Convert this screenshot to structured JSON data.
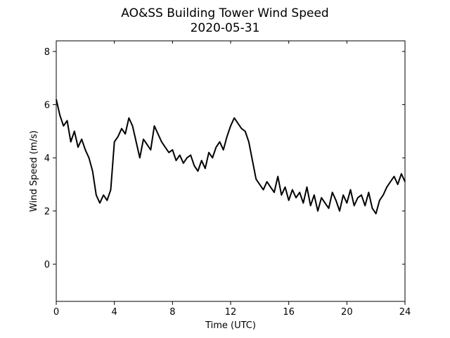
{
  "chart_data": {
    "type": "line",
    "title": "AO&SS Building Tower Wind Speed",
    "subtitle": "2020-05-31",
    "xlabel": "Time (UTC)",
    "ylabel": "Wind Speed (m/s)",
    "xlim": [
      0,
      24
    ],
    "ylim": [
      -1.4,
      8.4
    ],
    "xticks": [
      0,
      4,
      8,
      12,
      16,
      20,
      24
    ],
    "yticks": [
      0,
      2,
      4,
      6,
      8
    ],
    "grid": false,
    "legend": "none",
    "line_color": "#000000",
    "series": [
      {
        "x": [
          0,
          0.25,
          0.5,
          0.75,
          1.0,
          1.25,
          1.5,
          1.75,
          2.0,
          2.25,
          2.5,
          2.75,
          3.0,
          3.25,
          3.5,
          3.75,
          4.0,
          4.25,
          4.5,
          4.75,
          5.0,
          5.25,
          5.5,
          5.75,
          6.0,
          6.25,
          6.5,
          6.75,
          7.0,
          7.25,
          7.5,
          7.75,
          8.0,
          8.25,
          8.5,
          8.75,
          9.0,
          9.25,
          9.5,
          9.75,
          10.0,
          10.25,
          10.5,
          10.75,
          11.0,
          11.25,
          11.5,
          11.75,
          12.0,
          12.25,
          12.5,
          12.75,
          13.0,
          13.25,
          13.5,
          13.75,
          14.0,
          14.25,
          14.5,
          14.75,
          15.0,
          15.25,
          15.5,
          15.75,
          16.0,
          16.25,
          16.5,
          16.75,
          17.0,
          17.25,
          17.5,
          17.75,
          18.0,
          18.25,
          18.5,
          18.75,
          19.0,
          19.25,
          19.5,
          19.75,
          20.0,
          20.25,
          20.5,
          20.75,
          21.0,
          21.25,
          21.5,
          21.75,
          22.0,
          22.25,
          22.5,
          22.75,
          23.0,
          23.25,
          23.5,
          23.75,
          24.0
        ],
        "y": [
          6.2,
          5.6,
          5.2,
          5.4,
          4.6,
          5.0,
          4.4,
          4.7,
          4.3,
          4.0,
          3.5,
          2.6,
          2.3,
          2.6,
          2.4,
          2.8,
          4.6,
          4.8,
          5.1,
          4.9,
          5.5,
          5.2,
          4.6,
          4.0,
          4.7,
          4.5,
          4.3,
          5.2,
          4.9,
          4.6,
          4.4,
          4.2,
          4.3,
          3.9,
          4.1,
          3.8,
          4.0,
          4.1,
          3.7,
          3.5,
          3.9,
          3.6,
          4.2,
          4.0,
          4.4,
          4.6,
          4.3,
          4.8,
          5.2,
          5.5,
          5.3,
          5.1,
          5.0,
          4.6,
          3.9,
          3.2,
          3.0,
          2.8,
          3.1,
          2.9,
          2.7,
          3.3,
          2.6,
          2.9,
          2.4,
          2.8,
          2.5,
          2.7,
          2.3,
          2.9,
          2.2,
          2.6,
          2.0,
          2.5,
          2.3,
          2.1,
          2.7,
          2.4,
          2.0,
          2.6,
          2.3,
          2.8,
          2.2,
          2.5,
          2.6,
          2.2,
          2.7,
          2.1,
          1.9,
          2.4,
          2.6,
          2.9,
          3.1,
          3.3,
          3.0,
          3.4,
          3.1
        ]
      }
    ]
  }
}
